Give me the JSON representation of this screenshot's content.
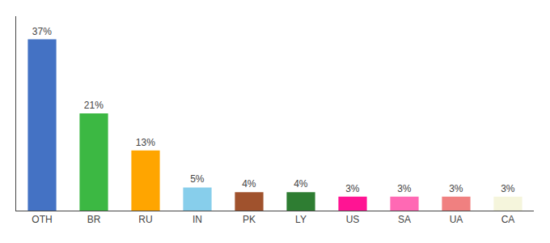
{
  "chart_data": {
    "type": "bar",
    "categories": [
      "OTH",
      "BR",
      "RU",
      "IN",
      "PK",
      "LY",
      "US",
      "SA",
      "UA",
      "CA"
    ],
    "values": [
      37,
      21,
      13,
      5,
      4,
      4,
      3,
      3,
      3,
      3
    ],
    "value_labels": [
      "37%",
      "21%",
      "13%",
      "5%",
      "4%",
      "4%",
      "3%",
      "3%",
      "3%",
      "3%"
    ],
    "colors": [
      "#4472C4",
      "#3CB843",
      "#FFA500",
      "#87CEEB",
      "#A0522D",
      "#2E7D32",
      "#FF1493",
      "#FF69B4",
      "#F08080",
      "#F5F5DC"
    ],
    "ylim": [
      0,
      42
    ],
    "grid": false,
    "data_labels": true,
    "tick_labels": "x"
  }
}
